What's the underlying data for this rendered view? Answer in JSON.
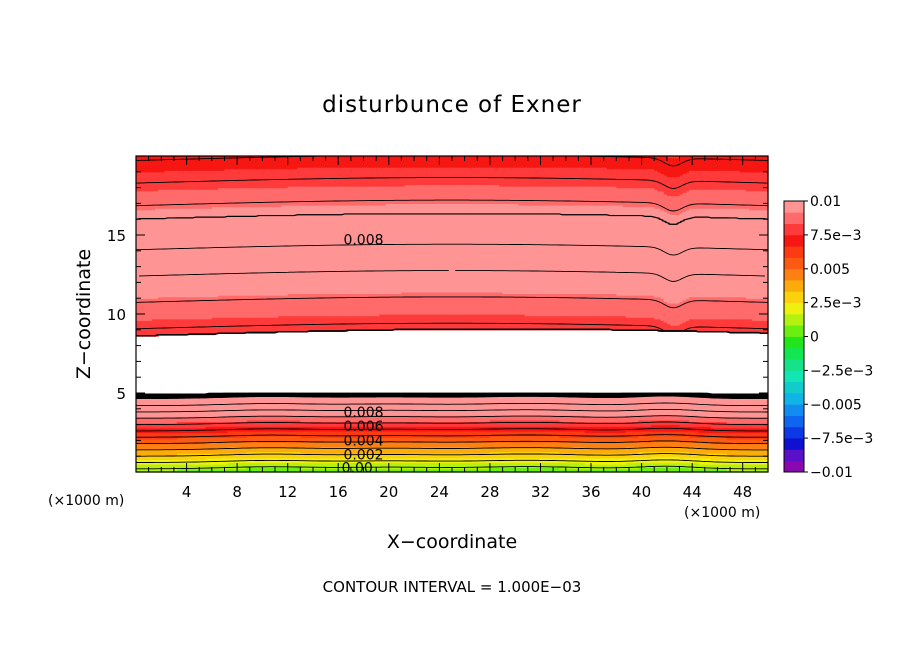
{
  "chart_data": {
    "type": "heatmap",
    "title": "disturbunce of Exner",
    "xlabel": "X−coordinate",
    "ylabel": "Z−coordinate",
    "x_unit": "(×1000 m)",
    "y_unit": "(×1000 m)",
    "xlim": [
      0,
      50
    ],
    "ylim": [
      0,
      20
    ],
    "x_ticks": [
      "4",
      "8",
      "12",
      "16",
      "20",
      "24",
      "28",
      "32",
      "36",
      "40",
      "44",
      "48"
    ],
    "y_ticks": [
      "5",
      "10",
      "15"
    ],
    "footer": "CONTOUR INTERVAL = 1.000E−03",
    "colorbar": {
      "min": -0.01,
      "max": 0.01,
      "labels": [
        "0.01",
        "7.5e−3",
        "0.005",
        "2.5e−3",
        "0",
        "−2.5e−3",
        "−0.005",
        "−7.5e−3",
        "−0.01"
      ],
      "colors": [
        "#8a08b0",
        "#5a10c8",
        "#1010d0",
        "#0c38e6",
        "#0e66ee",
        "#128cf0",
        "#10b4e6",
        "#12cccc",
        "#12e6b4",
        "#16e28a",
        "#12e650",
        "#22e61c",
        "#6cee10",
        "#b4f010",
        "#eef010",
        "#fcd20c",
        "#fcac0a",
        "#fc8012",
        "#fc5a12",
        "#fc3a14",
        "#f61612",
        "#ff3a3a",
        "#ff6a6a",
        "#ff9494"
      ]
    },
    "contour_labels": [
      {
        "text": "0.008",
        "x": 18,
        "z": 14.7
      },
      {
        "text": "0.008",
        "x": 18,
        "z": 3.8
      },
      {
        "text": "0.006",
        "x": 18,
        "z": 2.9
      },
      {
        "text": "0.004",
        "x": 18,
        "z": 2.0
      },
      {
        "text": "0.002",
        "x": 18,
        "z": 1.1
      },
      {
        "text": "0.00",
        "x": 17.5,
        "z": 0.3
      }
    ]
  }
}
